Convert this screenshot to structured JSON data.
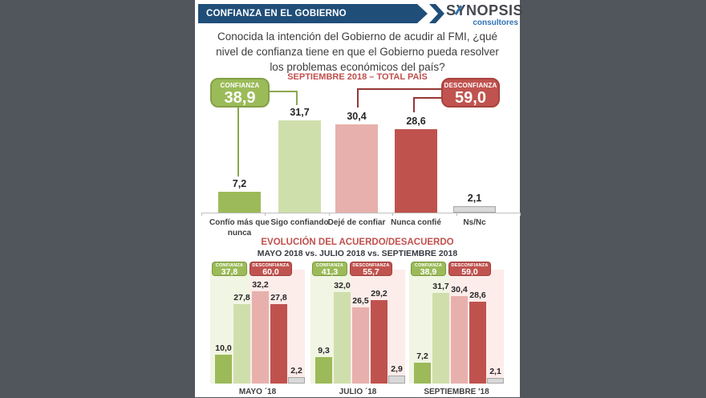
{
  "header": {
    "banner_title": "CONFIANZA EN EL GOBIERNO",
    "logo_name": "SYNOPSIS",
    "logo_sub": "consultores"
  },
  "question": "Conocida la intención del Gobierno de acudir al FMI, ¿qué nivel de confianza tiene en que el Gobierno pueda resolver los problemas económicos del país?",
  "top_chart": {
    "subtitle": "SEPTIEMBRE 2018 – TOTAL PAÍS",
    "confianza_box": {
      "label": "CONFIANZA",
      "value": "38,9"
    },
    "desconfianza_box": {
      "label": "DESCONFIANZA",
      "value": "59,0"
    },
    "bars": [
      {
        "category": "Confío más que nunca",
        "value": 7.2,
        "label": "7,2",
        "color": "#9cba59"
      },
      {
        "category": "Sigo confiando",
        "value": 31.7,
        "label": "31,7",
        "color": "#cfdfab"
      },
      {
        "category": "Dejé de confiar",
        "value": 30.4,
        "label": "30,4",
        "color": "#e7b0ad"
      },
      {
        "category": "Nunca confié",
        "value": 28.6,
        "label": "28,6",
        "color": "#c0524e"
      },
      {
        "category": "Ns/Nc",
        "value": 2.1,
        "label": "2,1",
        "color": "#d9d9d9",
        "border": "#a6a6a6"
      }
    ]
  },
  "evolution_chart": {
    "title": "EVOLUCIÓN DEL ACUERDO/DESACUERDO",
    "subtitle": "MAYO 2018 vs. JULIO 2018 vs. SEPTIEMBRE 2018",
    "badge_conf_label": "CONFIANZA",
    "badge_desc_label": "DESCONFIANZA",
    "bar_colors": [
      "#9cba59",
      "#cfdfab",
      "#e7b0ad",
      "#c0524e",
      "#d9d9d9"
    ],
    "groups": [
      {
        "label": "MAYO ´18",
        "confianza": "37,8",
        "desconfianza": "60,0",
        "values": [
          10.0,
          27.8,
          32.2,
          27.8,
          2.2
        ],
        "labels": [
          "10,0",
          "27,8",
          "32,2",
          "27,8",
          "2,2"
        ]
      },
      {
        "label": "JULIO ´18",
        "confianza": "41,3",
        "desconfianza": "55,7",
        "values": [
          9.3,
          32.0,
          26.5,
          29.2,
          2.9
        ],
        "labels": [
          "9,3",
          "32,0",
          "26,5",
          "29,2",
          "2,9"
        ]
      },
      {
        "label": "SEPTIEMBRE '18",
        "confianza": "38,9",
        "desconfianza": "59,0",
        "values": [
          7.2,
          31.7,
          30.4,
          28.6,
          2.1
        ],
        "labels": [
          "7,2",
          "31,7",
          "30,4",
          "28,6",
          "2,1"
        ]
      }
    ]
  },
  "chart_data": [
    {
      "type": "bar",
      "title": "SEPTIEMBRE 2018 – TOTAL PAÍS",
      "categories": [
        "Confío más que nunca",
        "Sigo confiando",
        "Dejé de confiar",
        "Nunca confié",
        "Ns/Nc"
      ],
      "values": [
        7.2,
        31.7,
        30.4,
        28.6,
        2.1
      ],
      "annotations": {
        "CONFIANZA": 38.9,
        "DESCONFIANZA": 59.0
      },
      "ylim": [
        0,
        35
      ],
      "grid": false,
      "data_labels": true
    },
    {
      "type": "bar",
      "title": "EVOLUCIÓN DEL ACUERDO/DESACUERDO",
      "subtitle": "MAYO 2018 vs. JULIO 2018 vs. SEPTIEMBRE 2018",
      "categories": [
        "MAYO ´18",
        "JULIO ´18",
        "SEPTIEMBRE '18"
      ],
      "series": [
        {
          "name": "Confío más que nunca",
          "values": [
            10.0,
            9.3,
            7.2
          ]
        },
        {
          "name": "Sigo confiando",
          "values": [
            27.8,
            32.0,
            31.7
          ]
        },
        {
          "name": "Dejé de confiar",
          "values": [
            32.2,
            26.5,
            30.4
          ]
        },
        {
          "name": "Nunca confié",
          "values": [
            27.8,
            29.2,
            28.6
          ]
        },
        {
          "name": "Ns/Nc",
          "values": [
            2.2,
            2.9,
            2.1
          ]
        }
      ],
      "summary_badges": {
        "CONFIANZA": [
          37.8,
          41.3,
          38.9
        ],
        "DESCONFIANZA": [
          60.0,
          55.7,
          59.0
        ]
      },
      "ylim": [
        0,
        35
      ],
      "grid": false,
      "data_labels": true
    }
  ],
  "colors": {
    "background_frame": "#50565b",
    "banner_blue": "#1f4e79",
    "logo_blue": "#2e74b5",
    "accent_red": "#c0504d",
    "confianza_green": "#9bbb59",
    "desconfianza_red": "#c0534f",
    "panel_green": "#f1f5e3",
    "panel_pink": "#fcecea"
  }
}
